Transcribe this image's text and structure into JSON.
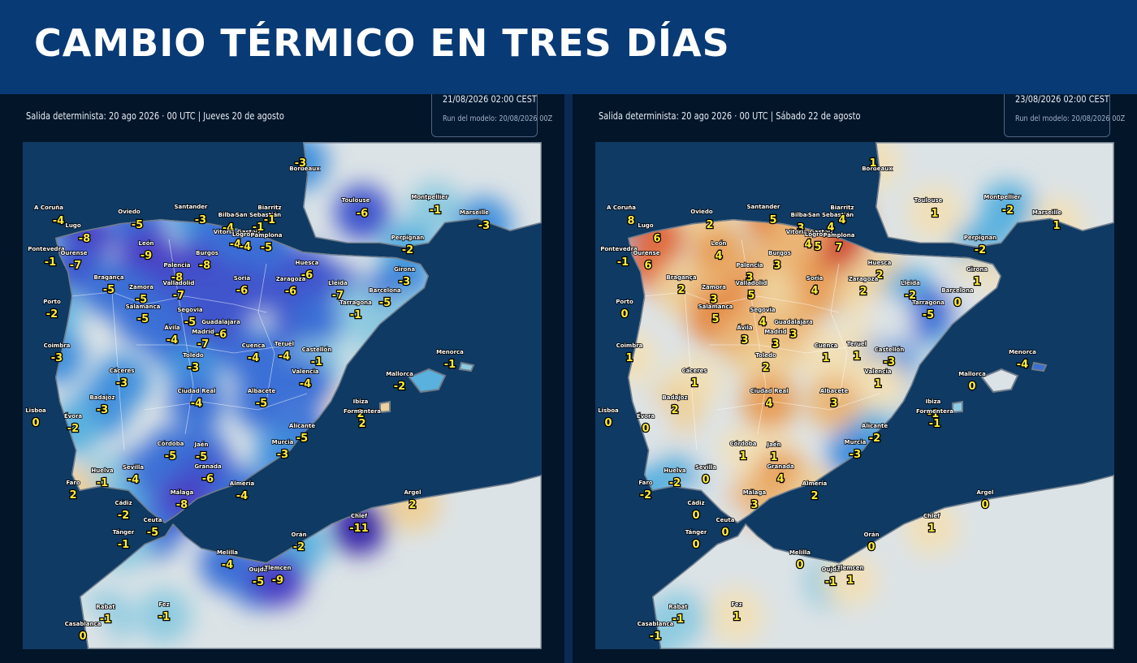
{
  "header": {
    "title": "CAMBIO TÉRMICO EN TRES DÍAS"
  },
  "colors": {
    "banner": "#083a75",
    "sea": "#0f3a63",
    "scale": {
      "-11": "#3a2aa8",
      "-9": "#4a3fc4",
      "-7": "#3f55cc",
      "-5": "#3a6fd6",
      "-3": "#3f8fdc",
      "-2": "#5ab1de",
      "-1": "#8fcbe0",
      "0": "#dce3e6",
      "1": "#f1e0b8",
      "2": "#eed09a",
      "3": "#eab676",
      "4": "#e79e56",
      "5": "#e48a45",
      "6": "#df6c3c",
      "7": "#d04c35",
      "8": "#c7392f"
    }
  },
  "panels": [
    {
      "subtitle": "Salida determinista: 20 ago 2026 · 00 UTC  |  Jueves 20 de agosto",
      "valid": "21/08/2026  02:00 CEST",
      "run": "Run del modelo: 20/08/2026 00Z",
      "values": {
        "bordeaux": -3,
        "toulouse": -6,
        "montpellier": -1,
        "marseille": -3,
        "acoruna": -4,
        "lugo": -8,
        "oviedo": -5,
        "santander": -3,
        "bilbao": -4,
        "vitoria": -4,
        "sansebastian": -1,
        "biarritz": -1,
        "pontevedra": -1,
        "ourense": -7,
        "leon": -9,
        "burgos": -8,
        "logrono": -4,
        "pamplona": -5,
        "huesca": -6,
        "perpignan": -2,
        "braganca": -5,
        "zamora": -5,
        "palencia": -8,
        "valladolid": -7,
        "soria": -6,
        "zaragoza": -6,
        "lleida": -7,
        "girona": -3,
        "porto": -2,
        "salamanca": -5,
        "segovia": -5,
        "barcelona": -5,
        "tarragona": -1,
        "avila": -4,
        "guadalajara": -6,
        "madrid": -7,
        "teruel": -4,
        "castellon": -1,
        "coimbra": -3,
        "cuenca": -4,
        "toledo": -3,
        "valencia": -4,
        "caceres": -3,
        "ciudadreal": -4,
        "albacete": -5,
        "mallorca": -2,
        "menorca": -1,
        "lisboa": 0,
        "badajoz": -3,
        "evora": -2,
        "ibiza": 2,
        "formentera": 2,
        "alicante": -5,
        "cordoba": -5,
        "jaen": -5,
        "murcia": -3,
        "sevilla": -4,
        "huelva": -1,
        "granada": -6,
        "almeria": -4,
        "faro": 2,
        "cadiz": -2,
        "malaga": -8,
        "argel": 2,
        "ceuta": -5,
        "tanger": -1,
        "chlef": -11,
        "oran": -2,
        "melilla": -4,
        "oujda": -5,
        "tlemcen": -9,
        "rabat": -1,
        "fez": -1,
        "casablanca": 0
      },
      "extras": {
        "a": -4,
        "b": -6,
        "c": -7,
        "d": -5,
        "e": -1,
        "f": -1
      }
    },
    {
      "subtitle": "Salida determinista: 20 ago 2026 · 00 UTC  |  Sábado 22 de agosto",
      "valid": "23/08/2026  02:00 CEST",
      "run": "Run del modelo: 20/08/2026 00Z",
      "values": {
        "bordeaux": 1,
        "toulouse": 1,
        "montpellier": -2,
        "marseille": 1,
        "acoruna": 8,
        "lugo": 6,
        "oviedo": 2,
        "santander": 5,
        "bilbao": 3,
        "vitoria": 4,
        "sansebastian": 4,
        "biarritz": 4,
        "pontevedra": -1,
        "ourense": 6,
        "leon": 4,
        "burgos": 3,
        "logrono": 5,
        "pamplona": 7,
        "huesca": 2,
        "perpignan": -2,
        "braganca": 2,
        "zamora": 3,
        "palencia": 3,
        "valladolid": 5,
        "soria": 4,
        "zaragoza": 2,
        "lleida": -2,
        "girona": 1,
        "porto": 0,
        "salamanca": 5,
        "segovia": 4,
        "barcelona": 0,
        "tarragona": -5,
        "avila": 3,
        "guadalajara": 3,
        "madrid": 3,
        "teruel": 1,
        "castellon": -3,
        "coimbra": 1,
        "cuenca": 1,
        "toledo": 2,
        "valencia": 1,
        "caceres": 1,
        "ciudadreal": 4,
        "albacete": 3,
        "mallorca": 0,
        "menorca": -4,
        "lisboa": 0,
        "badajoz": 2,
        "evora": 0,
        "ibiza": -1,
        "formentera": -1,
        "alicante": -2,
        "cordoba": 1,
        "jaen": 1,
        "murcia": -3,
        "sevilla": 0,
        "huelva": -2,
        "granada": 4,
        "almeria": 2,
        "faro": -2,
        "cadiz": 0,
        "malaga": 3,
        "argel": 0,
        "ceuta": 0,
        "tanger": 0,
        "chlef": 1,
        "oran": 0,
        "melilla": 0,
        "oujda": -1,
        "tlemcen": 1,
        "rabat": -1,
        "fez": 1,
        "casablanca": -1
      },
      "extras": {
        "a": 3,
        "b": 2,
        "c": 1,
        "d": 0,
        "e": -1,
        "f": 0
      }
    }
  ],
  "cities": {
    "bordeaux": "Bordeaux",
    "toulouse": "Toulouse",
    "montpellier": "Montpellier",
    "marseille": "Marseille",
    "acoruna": "A Coruña",
    "lugo": "Lugo",
    "oviedo": "Oviedo",
    "santander": "Santander",
    "bilbao": "Bilbao",
    "vitoria": "Vitoria-Gasteiz",
    "sansebastian": "San Sebastián",
    "biarritz": "Biarritz",
    "pontevedra": "Pontevedra",
    "ourense": "Ourense",
    "leon": "León",
    "burgos": "Burgos",
    "logrono": "Logroño",
    "pamplona": "Pamplona",
    "huesca": "Huesca",
    "perpignan": "Perpignan",
    "braganca": "Bragança",
    "zamora": "Zamora",
    "palencia": "Palencia",
    "valladolid": "Valladolid",
    "soria": "Soria",
    "zaragoza": "Zaragoza",
    "lleida": "Lleida",
    "girona": "Girona",
    "porto": "Porto",
    "salamanca": "Salamanca",
    "segovia": "Segovia",
    "barcelona": "Barcelona",
    "tarragona": "Tarragona",
    "avila": "Ávila",
    "guadalajara": "Guadalajara",
    "madrid": "Madrid",
    "teruel": "Teruel",
    "castellon": "Castellón",
    "coimbra": "Coimbra",
    "cuenca": "Cuenca",
    "toledo": "Toledo",
    "valencia": "Valencia",
    "caceres": "Cáceres",
    "ciudadreal": "Ciudad Real",
    "albacete": "Albacete",
    "mallorca": "Mallorca",
    "menorca": "Menorca",
    "lisboa": "Lisboa",
    "badajoz": "Badajoz",
    "evora": "Évora",
    "ibiza": "Ibiza",
    "formentera": "Formentera",
    "alicante": "Alicante",
    "cordoba": "Córdoba",
    "jaen": "Jaén",
    "murcia": "Murcia",
    "sevilla": "Sevilla",
    "huelva": "Huelva",
    "granada": "Granada",
    "almeria": "Almería",
    "faro": "Faro",
    "cadiz": "Cádiz",
    "malaga": "Málaga",
    "argel": "Argel",
    "ceuta": "Ceuta",
    "tanger": "Tánger",
    "chlef": "Chlef",
    "oran": "Orán",
    "melilla": "Melilla",
    "oujda": "Oujda",
    "tlemcen": "Tlemcen",
    "rabat": "Rabat",
    "fez": "Fez",
    "casablanca": "Casablanca"
  }
}
